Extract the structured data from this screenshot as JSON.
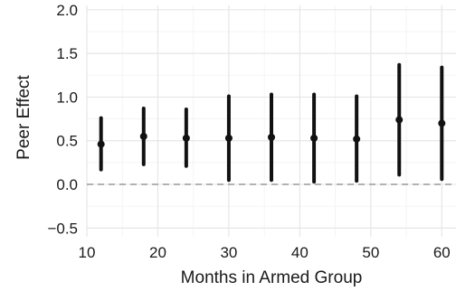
{
  "chart_data": {
    "type": "scatter",
    "title": "",
    "xlabel": "Months in Armed Group",
    "ylabel": "Peer Effect",
    "xlim": [
      10,
      62
    ],
    "ylim": [
      -0.6,
      2.05
    ],
    "x_ticks": [
      10,
      20,
      30,
      40,
      50,
      60
    ],
    "x_tick_labels": [
      "10",
      "20",
      "30",
      "40",
      "50",
      "60"
    ],
    "y_ticks": [
      -0.5,
      0.0,
      0.5,
      1.0,
      1.5,
      2.0
    ],
    "y_tick_labels": [
      "−0.5",
      "0.0",
      "0.5",
      "1.0",
      "1.5",
      "2.0"
    ],
    "grid": true,
    "reference_line": {
      "y": 0,
      "style": "dashed",
      "color": "#9a9a9a"
    },
    "series": [
      {
        "x": [
          12,
          18,
          24,
          30,
          36,
          42,
          48,
          54,
          60
        ],
        "y": [
          0.46,
          0.55,
          0.53,
          0.53,
          0.54,
          0.53,
          0.52,
          0.74,
          0.7
        ],
        "lower": [
          0.17,
          0.23,
          0.21,
          0.05,
          0.05,
          0.03,
          0.04,
          0.11,
          0.06
        ],
        "upper": [
          0.76,
          0.87,
          0.86,
          1.01,
          1.03,
          1.03,
          1.01,
          1.37,
          1.34
        ],
        "color": "#111111"
      }
    ]
  }
}
